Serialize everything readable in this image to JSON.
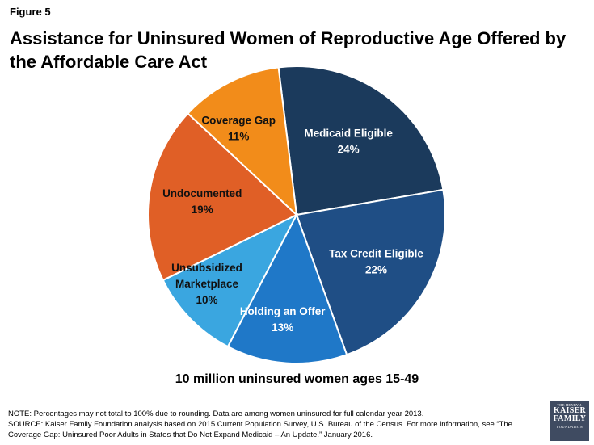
{
  "figure_label": "Figure 5",
  "chart_data": {
    "type": "pie",
    "title": "Assistance for Uninsured Women of Reproductive Age Offered by the Affordable Care Act",
    "caption": "10 million uninsured women ages 15-49",
    "slices": [
      {
        "name": "Medicaid Eligible",
        "value": 24,
        "label": "24%",
        "color": "#1b3a5c"
      },
      {
        "name": "Tax Credit Eligible",
        "value": 22,
        "label": "22%",
        "color": "#1f4e85"
      },
      {
        "name": "Holding an Offer",
        "value": 13,
        "label": "13%",
        "color": "#1f78c8"
      },
      {
        "name": "Unsubsidized Marketplace",
        "value": 10,
        "label": "10%",
        "color": "#3aa6e0"
      },
      {
        "name": "Undocumented",
        "value": 19,
        "label": "19%",
        "color": "#e05f26"
      },
      {
        "name": "Coverage Gap",
        "value": 11,
        "label": "11%",
        "color": "#f28c1a"
      }
    ]
  },
  "notes": {
    "note": "NOTE:  Percentages may not total to 100% due to rounding.  Data are among women uninsured for full calendar year 2013.",
    "source_line1": "SOURCE: Kaiser Family Foundation analysis based on 2015 Current Population Survey, U.S. Bureau of the Census. For more information, see “The",
    "source_line2": "Coverage Gap: Uninsured Poor Adults in States that Do Not Expand Medicaid – An Update.” January 2016."
  },
  "logo": {
    "top": "THE HENRY J.",
    "line1": "KAISER",
    "line2": "FAMILY",
    "bottom": "FOUNDATION"
  }
}
